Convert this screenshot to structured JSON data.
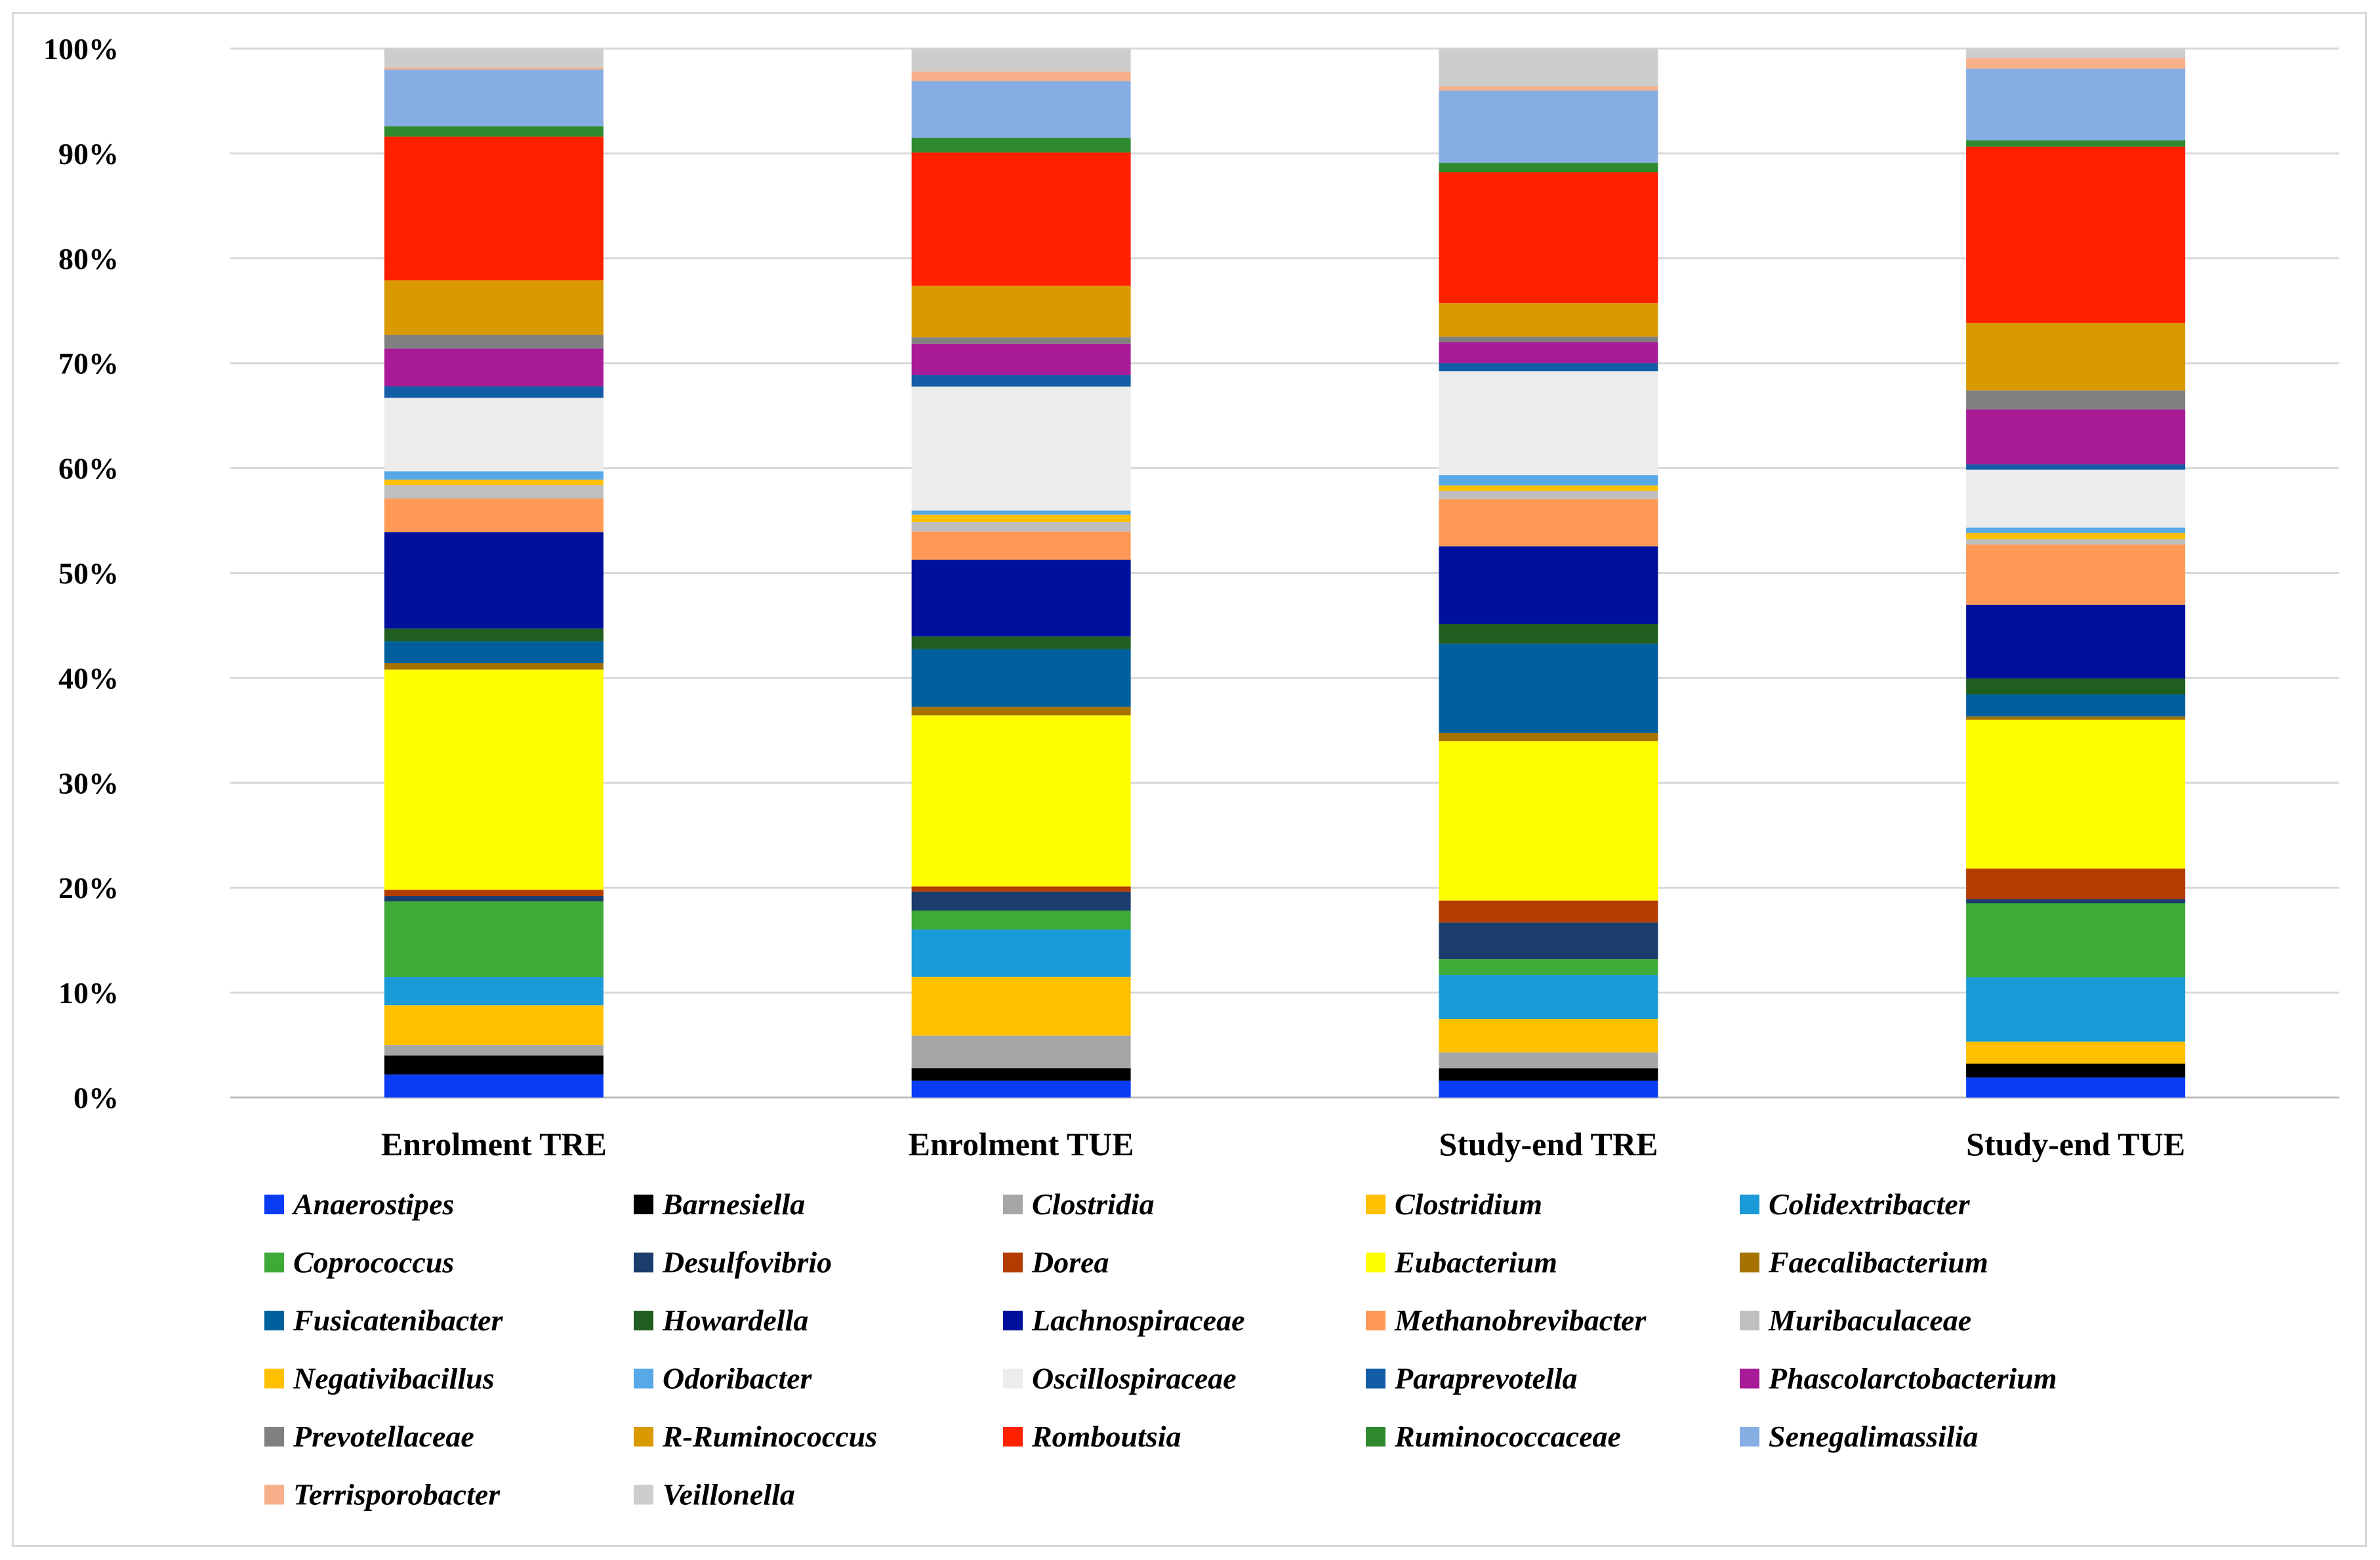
{
  "chart_data": {
    "type": "bar",
    "stacked": true,
    "title": "",
    "xlabel": "",
    "ylabel": "",
    "ylim": [
      0,
      100
    ],
    "y_ticks": [
      0,
      10,
      20,
      30,
      40,
      50,
      60,
      70,
      80,
      90,
      100
    ],
    "y_tick_labels": [
      "0%",
      "10%",
      "20%",
      "30%",
      "40%",
      "50%",
      "60%",
      "70%",
      "80%",
      "90%",
      "100%"
    ],
    "grid": true,
    "legend_position": "bottom",
    "categories": [
      "Enrolment TRE",
      "Enrolment TUE",
      "Study-end TRE",
      "Study-end TUE"
    ],
    "series": [
      {
        "name": "Anaerostipes",
        "color": "#0a3cf5",
        "values": [
          2.2,
          1.6,
          1.6,
          1.9
        ]
      },
      {
        "name": "Barnesiella",
        "color": "#000000",
        "values": [
          1.8,
          1.2,
          1.2,
          1.3
        ]
      },
      {
        "name": "Clostridia",
        "color": "#a6a6a6",
        "values": [
          1.0,
          3.1,
          1.5,
          0.0
        ]
      },
      {
        "name": "Clostridium",
        "color": "#ffc000",
        "values": [
          3.8,
          5.6,
          3.2,
          2.1
        ]
      },
      {
        "name": "Colidextribacter",
        "color": "#1a9ad6",
        "values": [
          2.7,
          4.5,
          4.2,
          6.1
        ]
      },
      {
        "name": "Coprococcus",
        "color": "#3eaa38",
        "values": [
          7.2,
          1.8,
          1.5,
          7.0
        ]
      },
      {
        "name": "Desulfovibrio",
        "color": "#1a3d6e",
        "values": [
          0.5,
          1.8,
          3.5,
          0.4
        ]
      },
      {
        "name": "Dorea",
        "color": "#b33c00",
        "values": [
          0.6,
          0.5,
          2.1,
          2.9
        ]
      },
      {
        "name": "Eubacterium",
        "color": "#ffff00",
        "values": [
          21.0,
          16.3,
          15.2,
          14.1
        ]
      },
      {
        "name": "Faecalibacterium",
        "color": "#a67300",
        "values": [
          0.6,
          0.8,
          0.8,
          0.3
        ]
      },
      {
        "name": "Fusicatenibacter",
        "color": "#00609e",
        "values": [
          2.1,
          5.5,
          8.5,
          2.1
        ]
      },
      {
        "name": "Howardella",
        "color": "#205e20",
        "values": [
          1.2,
          1.2,
          1.9,
          1.5
        ]
      },
      {
        "name": "Lachnospiraceae",
        "color": "#00109c",
        "values": [
          9.2,
          7.3,
          7.4,
          7.0
        ]
      },
      {
        "name": "Methanobrevibacter",
        "color": "#ff9955",
        "values": [
          3.2,
          2.7,
          4.5,
          5.7
        ]
      },
      {
        "name": "Muribaculaceae",
        "color": "#bfbfbf",
        "values": [
          1.3,
          0.9,
          0.8,
          0.5
        ]
      },
      {
        "name": "Negativibacillus",
        "color": "#ffc000",
        "values": [
          0.5,
          0.7,
          0.5,
          0.6
        ]
      },
      {
        "name": "Odoribacter",
        "color": "#56a8e6",
        "values": [
          0.8,
          0.4,
          1.0,
          0.5
        ]
      },
      {
        "name": "Oscillospiraceae",
        "color": "#ececec",
        "values": [
          7.0,
          11.8,
          9.9,
          5.5
        ]
      },
      {
        "name": "Paraprevotella",
        "color": "#125da6",
        "values": [
          1.1,
          1.1,
          0.8,
          0.5
        ]
      },
      {
        "name": "Phascolarctobacterium",
        "color": "#a91b96",
        "values": [
          3.6,
          3.0,
          2.0,
          5.2
        ]
      },
      {
        "name": "Prevotellaceae",
        "color": "#808080",
        "values": [
          1.3,
          0.6,
          0.5,
          1.8
        ]
      },
      {
        "name": "R-Ruminococcus",
        "color": "#d99a00",
        "values": [
          5.2,
          4.9,
          3.2,
          6.4
        ]
      },
      {
        "name": "Romboutsia",
        "color": "#ff2000",
        "values": [
          13.7,
          12.7,
          12.5,
          16.7
        ]
      },
      {
        "name": "Ruminococcaceae",
        "color": "#2f8a2f",
        "values": [
          1.0,
          1.4,
          0.9,
          0.6
        ]
      },
      {
        "name": "Senegalimassilia",
        "color": "#86aee3",
        "values": [
          5.4,
          5.4,
          6.9,
          6.8
        ]
      },
      {
        "name": "Terrisporobacter",
        "color": "#f7b08a",
        "values": [
          0.2,
          0.9,
          0.4,
          1.0
        ]
      },
      {
        "name": "Veillonella",
        "color": "#cdcdcd",
        "values": [
          1.8,
          2.2,
          3.6,
          0.9
        ]
      }
    ]
  }
}
